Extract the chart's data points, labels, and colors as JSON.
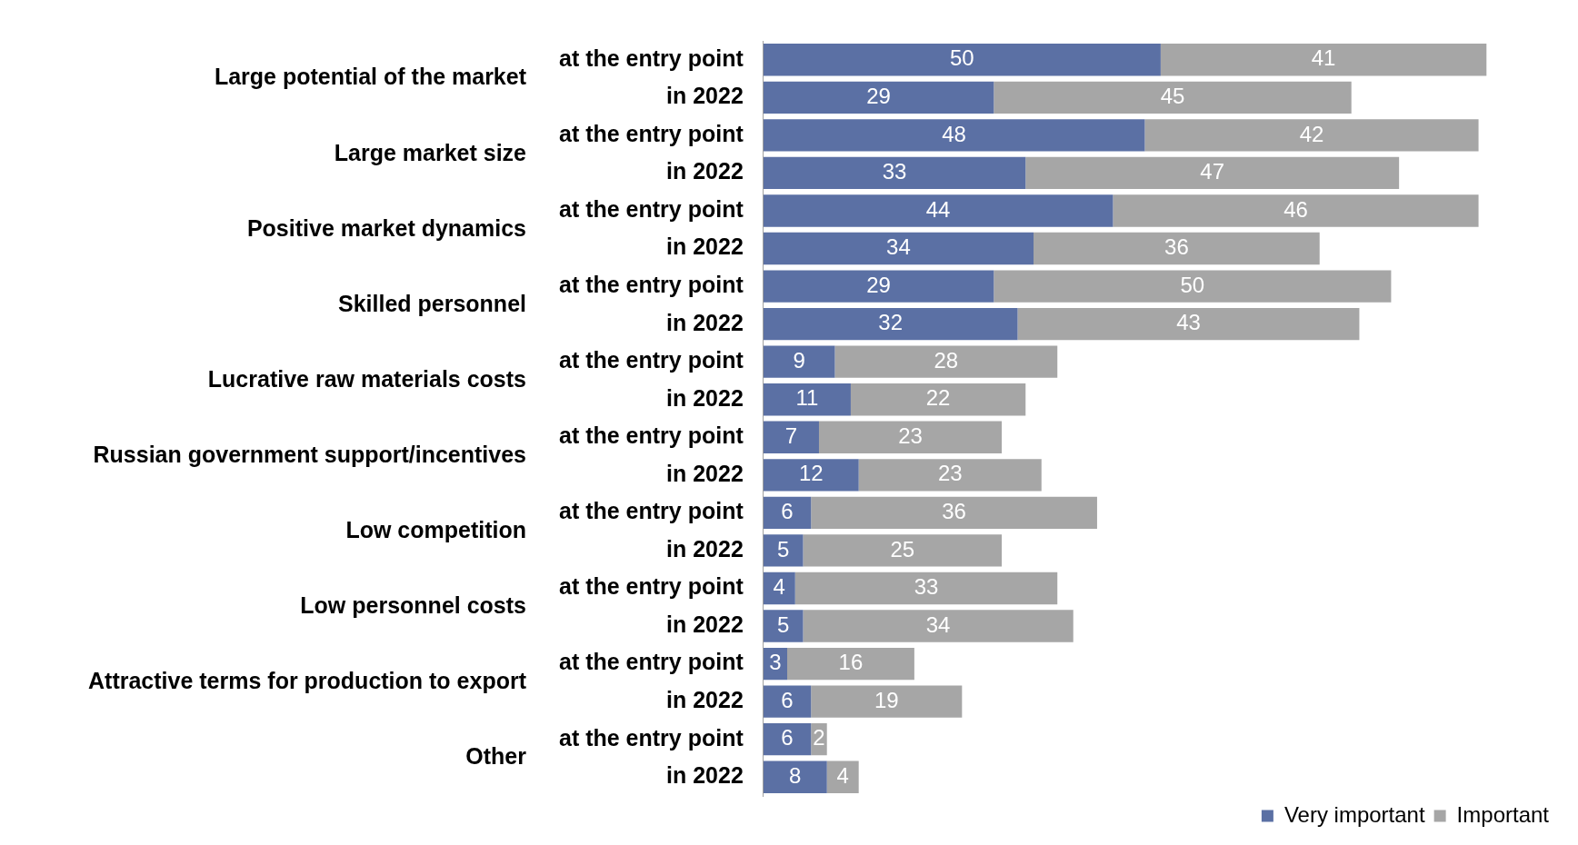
{
  "chart_data": {
    "type": "bar",
    "orientation": "horizontal",
    "stacked": true,
    "data_labels": true,
    "legend": "bottom right",
    "grid": false,
    "categories": [
      "at the entry point",
      "in 2022",
      "at the entry point",
      "in 2022",
      "at the entry point",
      "in 2022",
      "at the entry point",
      "in 2022",
      "at the entry point",
      "in 2022",
      "at the entry point",
      "in 2022",
      "at the entry point",
      "in 2022",
      "at the entry point",
      "in 2022",
      "at the entry point",
      "in 2022",
      "at the entry point",
      "in 2022"
    ],
    "annotations": [
      "Large potential of the market",
      "Large market size",
      "Positive market dynamics",
      "Skilled personnel",
      "Lucrative raw materials costs",
      "Russian government support/incentives",
      "Low competition",
      "Low personnel costs",
      "Attractive terms for production to export",
      "Other"
    ],
    "series": [
      {
        "name": "Very important",
        "color": "#5b70a4",
        "values": [
          50,
          29,
          48,
          33,
          44,
          34,
          29,
          32,
          9,
          11,
          7,
          12,
          6,
          5,
          4,
          5,
          3,
          6,
          6,
          8
        ]
      },
      {
        "name": "Important",
        "color": "#a6a6a6",
        "values": [
          41,
          45,
          42,
          47,
          46,
          36,
          50,
          43,
          28,
          22,
          23,
          23,
          36,
          25,
          33,
          34,
          16,
          19,
          2,
          4
        ]
      }
    ]
  }
}
